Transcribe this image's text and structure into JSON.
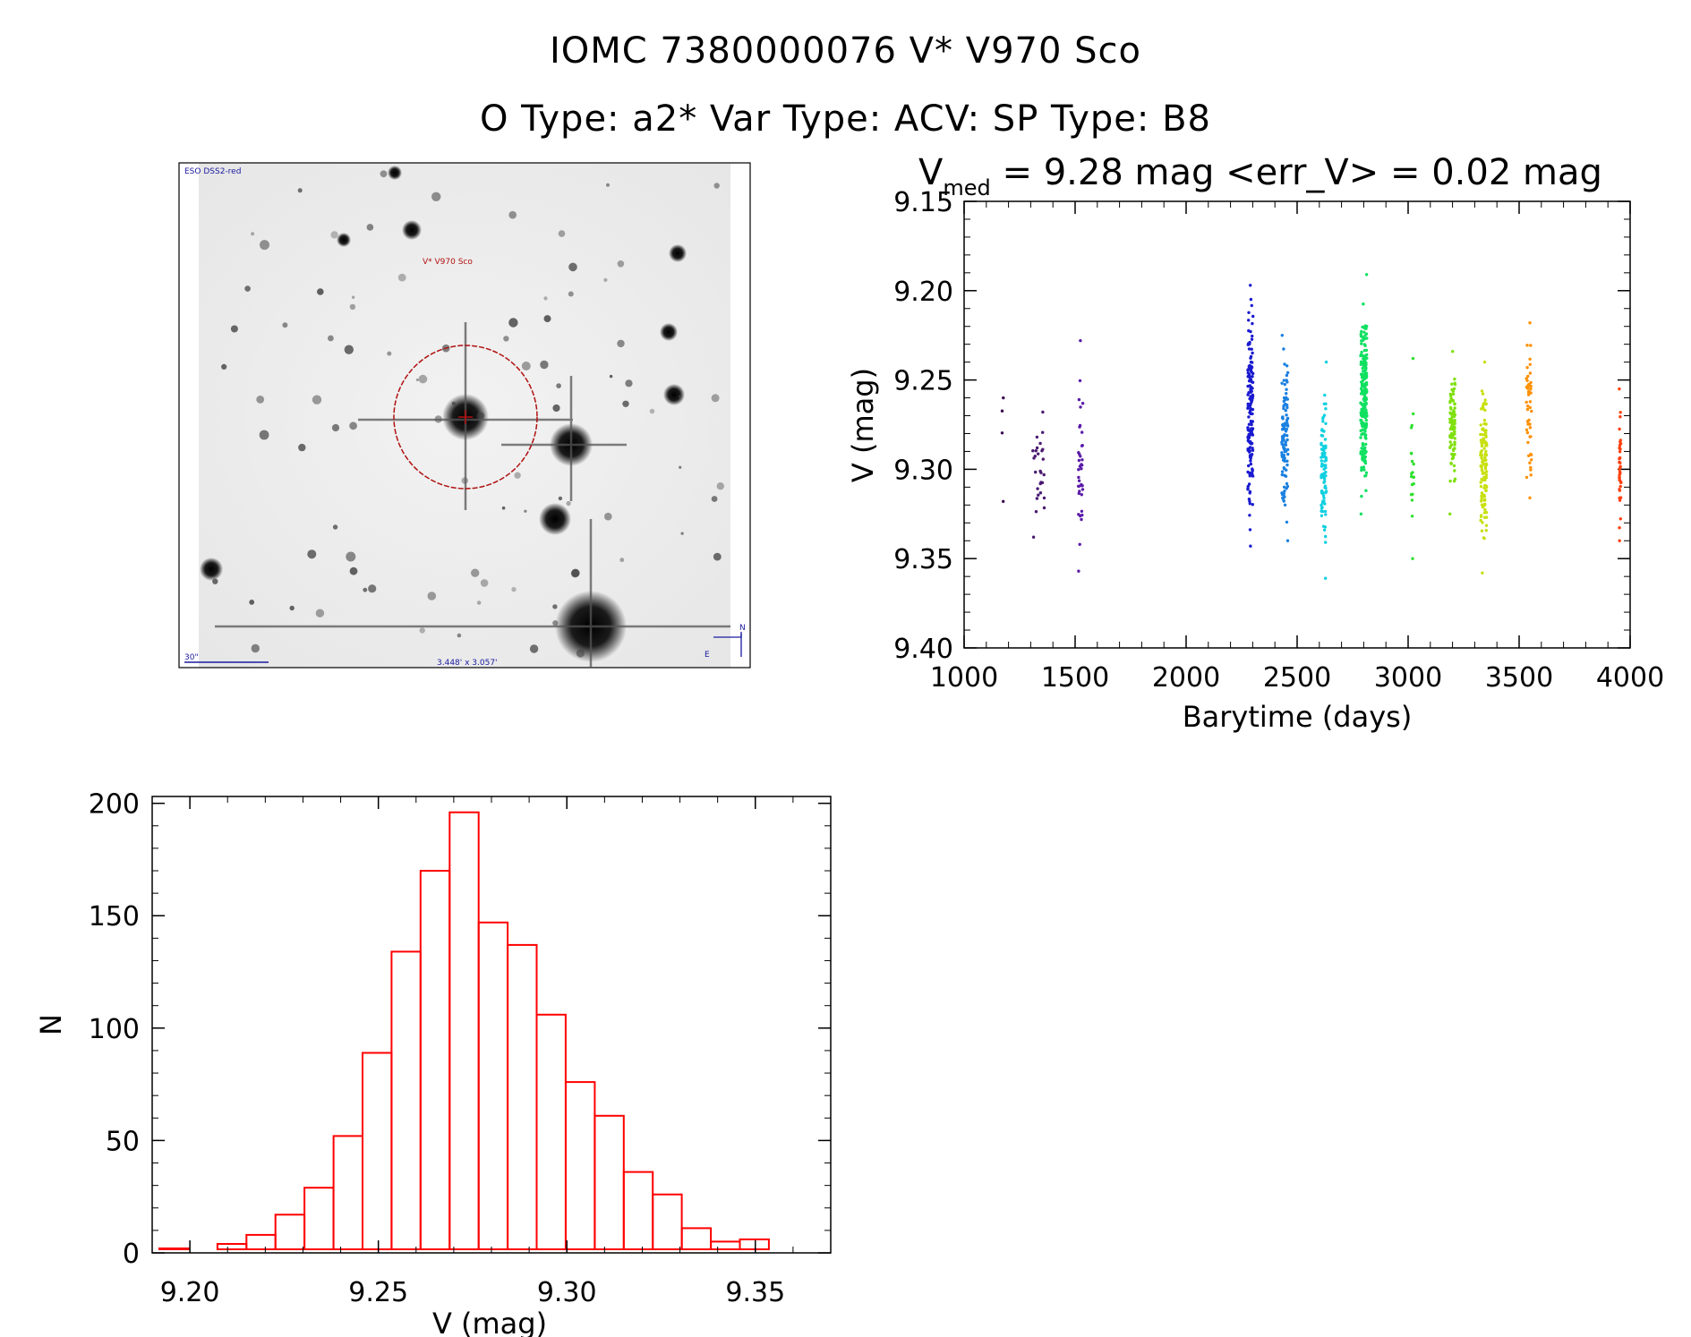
{
  "header": {
    "title_line1": "IOMC 7380000076    V* V970 Sco",
    "title_line2": "O Type: a2*  Var Type: ACV:  SP Type: B8"
  },
  "finder": {
    "survey_label": "ESO DSS2-red",
    "target_label": "V* V970 Sco",
    "scale_label": "30\"",
    "fov_label": "3.448' x 3.057'",
    "north_label": "N",
    "east_label": "E"
  },
  "colors": {
    "histogram": "#ff0000",
    "axes": "#000000",
    "finder_overlay": "#b01010",
    "finder_text": "#1a1aa0"
  },
  "chart_data": [
    {
      "type": "scatter",
      "title": "V_med = 9.28 mag <err_V> = 0.02 mag",
      "title_parts": {
        "v": "V",
        "sub": "med",
        "rest": " = 9.28 mag <err_V> = 0.02 mag"
      },
      "xlabel": "Barytime (days)",
      "ylabel": "V (mag)",
      "xlim": [
        1000,
        4000
      ],
      "ylim": [
        9.4,
        9.15
      ],
      "y_reversed": true,
      "x_ticks": [
        1000,
        1500,
        2000,
        2500,
        3000,
        3500,
        4000
      ],
      "x_tick_labels": [
        "1000",
        "1500",
        "2000",
        "2500",
        "3000",
        "3500",
        "4000"
      ],
      "y_ticks": [
        9.15,
        9.2,
        9.25,
        9.3,
        9.35,
        9.4
      ],
      "y_tick_labels": [
        "9.15",
        "9.20",
        "9.25",
        "9.30",
        "9.35",
        "9.40"
      ],
      "seasons": [
        {
          "x": 1175,
          "spread": 8,
          "n": 4,
          "ymin": 9.26,
          "ymax": 9.318,
          "color": "#3a0a50"
        },
        {
          "x": 1335,
          "spread": 28,
          "n": 28,
          "ymin": 9.268,
          "ymax": 9.338,
          "color": "#4a1a70"
        },
        {
          "x": 1525,
          "spread": 10,
          "n": 38,
          "ymin": 9.228,
          "ymax": 9.357,
          "color": "#5a1aa8"
        },
        {
          "x": 2290,
          "spread": 12,
          "n": 160,
          "ymin": 9.197,
          "ymax": 9.343,
          "color": "#1a1ad0"
        },
        {
          "x": 2445,
          "spread": 14,
          "n": 110,
          "ymin": 9.225,
          "ymax": 9.34,
          "color": "#1a80e0"
        },
        {
          "x": 2620,
          "spread": 12,
          "n": 90,
          "ymin": 9.24,
          "ymax": 9.361,
          "color": "#10d0e0"
        },
        {
          "x": 2800,
          "spread": 14,
          "n": 220,
          "ymin": 9.191,
          "ymax": 9.325,
          "color": "#10e060"
        },
        {
          "x": 3020,
          "spread": 6,
          "n": 20,
          "ymin": 9.238,
          "ymax": 9.35,
          "color": "#30e030"
        },
        {
          "x": 3200,
          "spread": 12,
          "n": 90,
          "ymin": 9.234,
          "ymax": 9.325,
          "color": "#80e010"
        },
        {
          "x": 3340,
          "spread": 14,
          "n": 130,
          "ymin": 9.24,
          "ymax": 9.358,
          "color": "#c8e010"
        },
        {
          "x": 3545,
          "spread": 12,
          "n": 50,
          "ymin": 9.218,
          "ymax": 9.316,
          "color": "#ff9000"
        },
        {
          "x": 3955,
          "spread": 4,
          "n": 40,
          "ymin": 9.255,
          "ymax": 9.34,
          "color": "#ff4010"
        }
      ]
    },
    {
      "type": "bar",
      "subtype": "histogram",
      "xlabel": "V (mag)",
      "ylabel": "N",
      "xlim": [
        9.19,
        9.37
      ],
      "ylim": [
        0,
        200
      ],
      "bin_width": 0.0077,
      "bin_start": 9.1919,
      "values": [
        2,
        1,
        4,
        8,
        17,
        29,
        52,
        89,
        134,
        170,
        196,
        147,
        137,
        106,
        76,
        61,
        36,
        26,
        11,
        5,
        6,
        1
      ],
      "x_ticks": [
        9.2,
        9.25,
        9.3,
        9.35
      ],
      "x_tick_labels": [
        "9.20",
        "9.25",
        "9.30",
        "9.35"
      ],
      "y_ticks": [
        0,
        50,
        100,
        150,
        200
      ],
      "y_tick_labels": [
        "0",
        "50",
        "100",
        "150",
        "200"
      ],
      "color": "#ff0000"
    }
  ]
}
